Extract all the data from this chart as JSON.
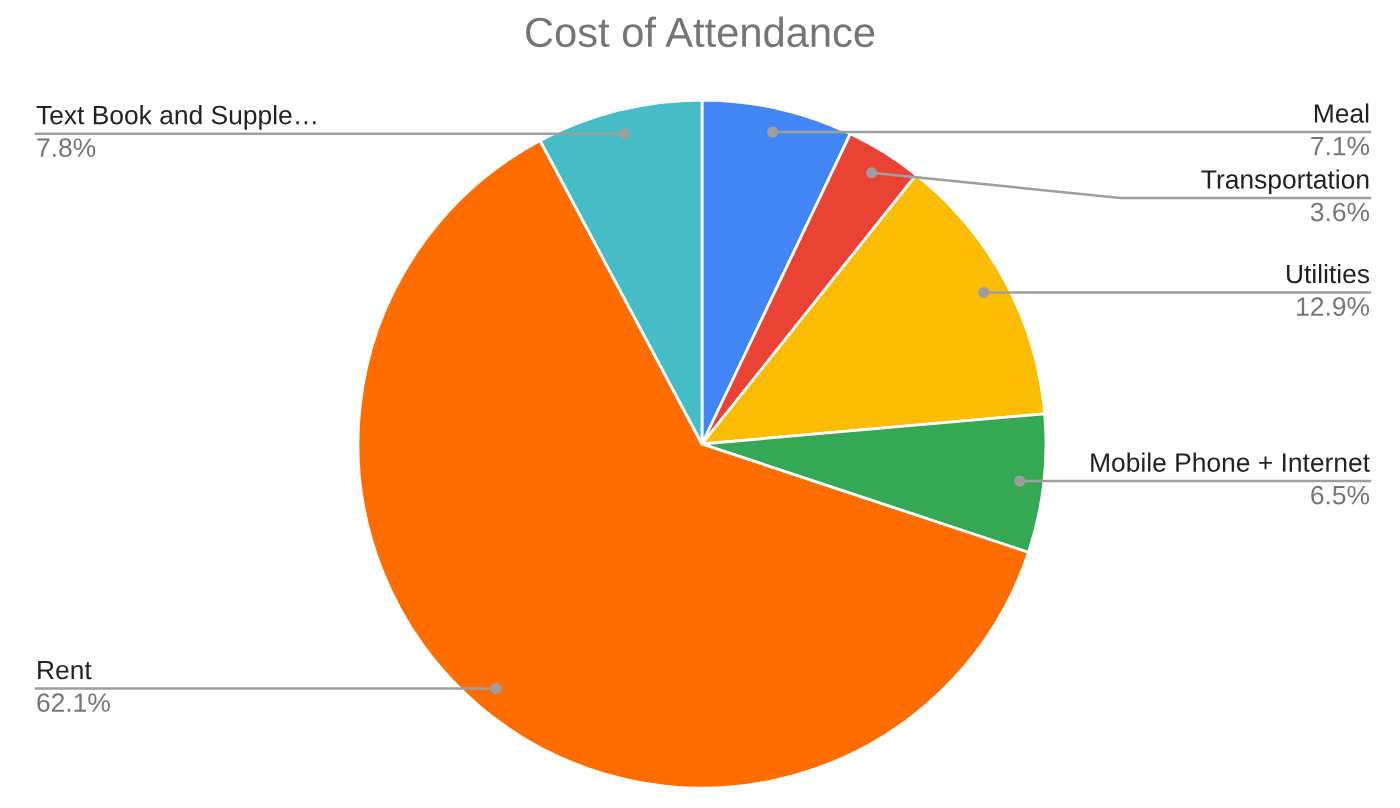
{
  "chart_data": {
    "type": "pie",
    "title": "Cost of Attendance",
    "categories": [
      "Meal",
      "Transportation",
      "Utilities",
      "Mobile Phone + Internet",
      "Rent",
      "Text Book and Supple…"
    ],
    "values": [
      7.1,
      3.6,
      12.9,
      6.5,
      62.1,
      7.8
    ],
    "colors": [
      "#4285f4",
      "#ea4335",
      "#fbbc04",
      "#34a853",
      "#ff6d01",
      "#46bdc6"
    ],
    "value_labels": [
      "7.1%",
      "3.6%",
      "12.9%",
      "6.5%",
      "62.1%",
      "7.8%"
    ],
    "legend": false
  }
}
